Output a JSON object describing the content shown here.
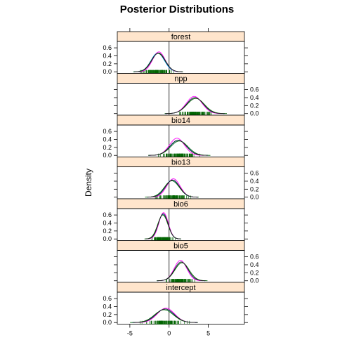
{
  "chart_data": {
    "type": "line",
    "title": "Posterior Distributions",
    "ylabel": "Density",
    "xlabel": "",
    "xlim": [
      -6.6,
      9.6
    ],
    "ylim": [
      -0.04,
      0.76
    ],
    "x_ticks": [
      -5,
      0,
      5
    ],
    "y_ticks": [
      0.0,
      0.2,
      0.4,
      0.6
    ],
    "reference_line_x": 0,
    "strip_color": "#ffe5cc",
    "chain_colors": [
      "#0080ff",
      "#ff00ff",
      "#006400",
      "#222222"
    ],
    "rug_color": "#006400",
    "panels": [
      {
        "name": "forest",
        "chains": [
          {
            "mean": -1.45,
            "sd": 0.85,
            "peak": 0.47
          },
          {
            "mean": -1.3,
            "sd": 0.8,
            "peak": 0.5
          },
          {
            "mean": -1.4,
            "sd": 0.88,
            "peak": 0.46
          },
          {
            "mean": -1.35,
            "sd": 0.86,
            "peak": 0.47
          }
        ]
      },
      {
        "name": "npp",
        "chains": [
          {
            "mean": 3.3,
            "sd": 1.05,
            "peak": 0.4
          },
          {
            "mean": 3.2,
            "sd": 1.0,
            "peak": 0.43
          },
          {
            "mean": 3.4,
            "sd": 1.1,
            "peak": 0.38
          },
          {
            "mean": 3.3,
            "sd": 1.05,
            "peak": 0.4
          }
        ]
      },
      {
        "name": "bio14",
        "chains": [
          {
            "mean": 1.2,
            "sd": 1.05,
            "peak": 0.38
          },
          {
            "mean": 1.0,
            "sd": 0.95,
            "peak": 0.43
          },
          {
            "mean": 1.3,
            "sd": 1.1,
            "peak": 0.36
          },
          {
            "mean": 1.15,
            "sd": 1.05,
            "peak": 0.38
          }
        ]
      },
      {
        "name": "bio13",
        "chains": [
          {
            "mean": 0.4,
            "sd": 0.9,
            "peak": 0.43
          },
          {
            "mean": 0.55,
            "sd": 0.85,
            "peak": 0.46
          },
          {
            "mean": 0.35,
            "sd": 0.95,
            "peak": 0.41
          },
          {
            "mean": 0.45,
            "sd": 0.9,
            "peak": 0.43
          }
        ]
      },
      {
        "name": "bio6",
        "chains": [
          {
            "mean": -0.75,
            "sd": 0.62,
            "peak": 0.62
          },
          {
            "mean": -0.7,
            "sd": 0.6,
            "peak": 0.66
          },
          {
            "mean": -0.8,
            "sd": 0.65,
            "peak": 0.6
          },
          {
            "mean": -0.75,
            "sd": 0.62,
            "peak": 0.63
          }
        ]
      },
      {
        "name": "bio5",
        "chains": [
          {
            "mean": 1.55,
            "sd": 0.85,
            "peak": 0.47
          },
          {
            "mean": 1.45,
            "sd": 0.8,
            "peak": 0.51
          },
          {
            "mean": 1.65,
            "sd": 0.9,
            "peak": 0.45
          },
          {
            "mean": 1.55,
            "sd": 0.86,
            "peak": 0.47
          }
        ]
      },
      {
        "name": "intercept",
        "chains": [
          {
            "mean": -0.55,
            "sd": 1.15,
            "peak": 0.34
          },
          {
            "mean": -0.4,
            "sd": 1.1,
            "peak": 0.36
          },
          {
            "mean": -0.65,
            "sd": 1.2,
            "peak": 0.32
          },
          {
            "mean": -0.5,
            "sd": 1.15,
            "peak": 0.34
          }
        ]
      }
    ]
  }
}
